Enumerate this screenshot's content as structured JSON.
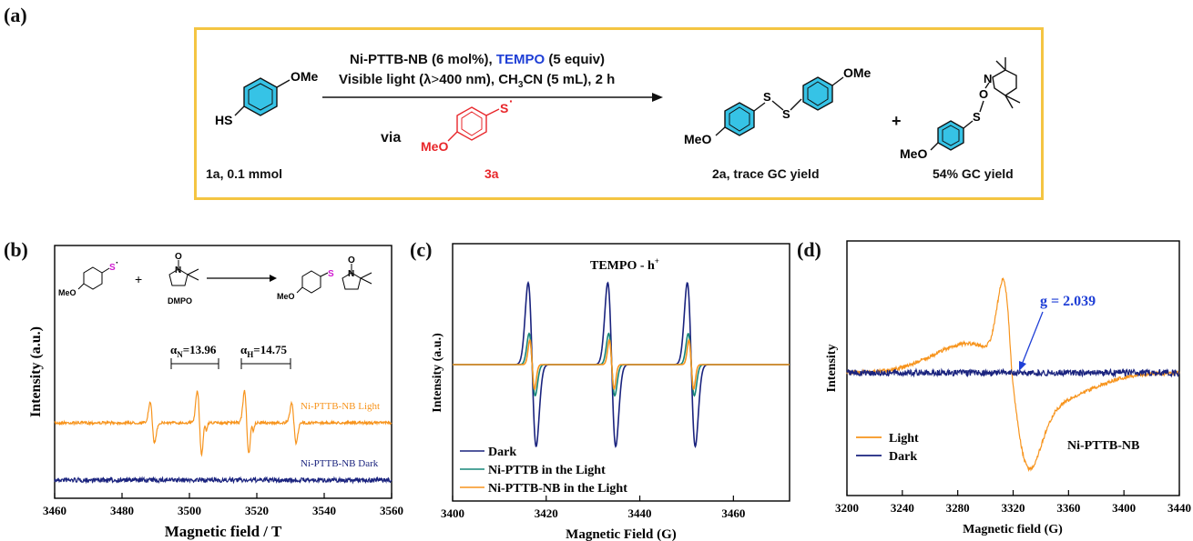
{
  "panels": {
    "a": "(a)",
    "b": "(b)",
    "c": "(c)",
    "d": "(d)"
  },
  "scheme": {
    "reagent_pre": "Ni-PTTB-NB (6 mol%), ",
    "reagent_tempo": "TEMPO",
    "reagent_post": " (5 equiv)",
    "conditions_pre": "Visible light (λ",
    "conditions_gt": ">",
    "conditions_nm": "400 nm), CH",
    "conditions_sub3": "3",
    "conditions_cn": "CN (5 mL), 2 h",
    "via": "via",
    "intermediate_label": "3a",
    "substrate_label": "1a, 0.1 mmol",
    "product1_label": "2a, trace GC yield",
    "plus": "+",
    "product2_label": "54% GC yield",
    "atoms": {
      "OMe": "OMe",
      "HS": "HS",
      "MeO": "MeO",
      "S": "S",
      "O": "O",
      "N": "N",
      "dot": "·"
    },
    "colors": {
      "frame": "#f4c542",
      "tempo": "#1f3fd6",
      "intermediate": "#e8262a",
      "ring_fill": "#36c3e6"
    }
  },
  "chart_data": [
    {
      "panel": "b",
      "type": "line",
      "xlabel": "Magnetic field / T",
      "ylabel": "Intensity (a.u.)",
      "xlim": [
        3460,
        3560
      ],
      "xticks": [
        3460,
        3480,
        3500,
        3520,
        3540,
        3560
      ],
      "annotations": {
        "alphaN": "αN=13.96",
        "alphaN_sub": "N",
        "alphaN_val": "=13.96",
        "alphaH": "αH=14.75",
        "alphaH_sub": "H",
        "alphaH_val": "=14.75",
        "dmpo": "DMPO"
      },
      "series": [
        {
          "name": "Ni-PTTB-NB Light",
          "color": "#f7941d",
          "peaks": [
            3489,
            3503,
            3517,
            3531
          ]
        },
        {
          "name": "Ni-PTTB-NB Dark",
          "color": "#1a237e"
        }
      ]
    },
    {
      "panel": "c",
      "type": "line",
      "title": "TEMPO - h",
      "title_sup": "+",
      "xlabel": "Magnetic Field (G)",
      "ylabel": "Intensity (a.u.)",
      "xlim": [
        3400,
        3472
      ],
      "xticks": [
        3400,
        3420,
        3440,
        3460
      ],
      "peaks": [
        3417,
        3434,
        3451
      ],
      "series": [
        {
          "name": "Dark",
          "color": "#1a237e",
          "amplitude": 1.0
        },
        {
          "name": "Ni-PTTB in the Light",
          "color": "#17877a",
          "amplitude": 0.38
        },
        {
          "name": "Ni-PTTB-NB in the Light",
          "color": "#f7941d",
          "amplitude": 0.3
        }
      ]
    },
    {
      "panel": "d",
      "type": "line",
      "xlabel": "Magnetic field (G)",
      "ylabel": "Intensity",
      "xlim": [
        3200,
        3440
      ],
      "xticks": [
        3200,
        3240,
        3280,
        3320,
        3360,
        3400,
        3440
      ],
      "annotation": "g = 2.039",
      "sample": "Ni-PTTB-NB",
      "series": [
        {
          "name": "Light",
          "color": "#f7941d"
        },
        {
          "name": "Dark",
          "color": "#1a237e"
        }
      ]
    }
  ]
}
